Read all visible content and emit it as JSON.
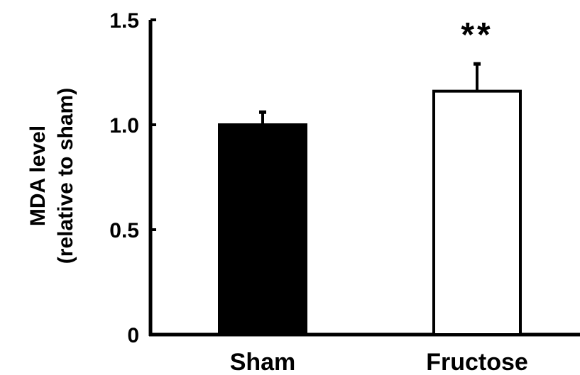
{
  "chart_data": {
    "type": "bar",
    "title": "",
    "ylabel_line1": "MDA level",
    "ylabel_line2": "(relative to sham)",
    "xlabel": "",
    "ylim": [
      0,
      1.5
    ],
    "yticks": [
      0,
      0.5,
      1.0,
      1.5
    ],
    "ytick_labels": [
      "0",
      "0.5",
      "1.0",
      "1.5"
    ],
    "categories": [
      "Sham",
      "Fructose"
    ],
    "values": [
      1.0,
      1.16
    ],
    "errors": [
      0.06,
      0.13
    ],
    "bar_fills": [
      "#000000",
      "#ffffff"
    ],
    "annotations": [
      "",
      "**"
    ],
    "grid": false,
    "legend": "none"
  }
}
